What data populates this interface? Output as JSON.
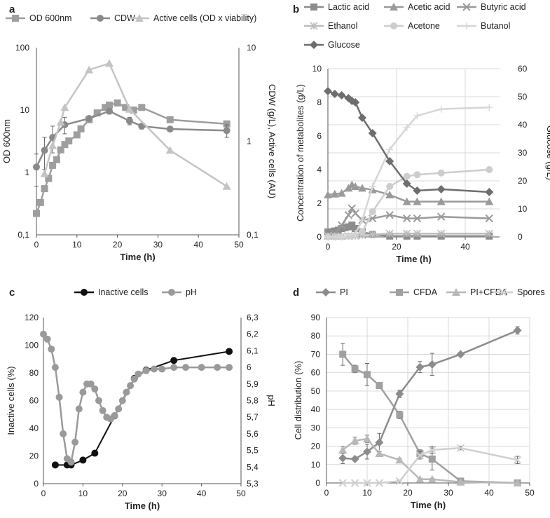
{
  "chart_data": [
    {
      "panel": "a",
      "type": "line",
      "yscale": "log",
      "x_ticks": [
        "0",
        "10",
        "20",
        "30",
        "40",
        "50"
      ],
      "xlabel": "Time (h)",
      "xlim": [
        0,
        50
      ],
      "ylabel": "OD 600nm",
      "ylim": [
        0.1,
        100
      ],
      "y_ticks": [
        "0,1",
        "1",
        "10",
        "100"
      ],
      "y2label": "CDW (g/L), Active cells (AU)",
      "y2lim": [
        0.1,
        10
      ],
      "y2_ticks": [
        "0,1",
        "1",
        "10"
      ],
      "series": [
        {
          "name": "OD 600nm",
          "axis": "left",
          "marker": "square",
          "color": "#9e9e9e",
          "x": [
            0,
            1,
            2,
            3,
            4,
            5,
            6,
            7,
            8,
            10,
            11,
            13,
            15,
            17,
            18,
            20,
            22,
            24,
            26,
            33,
            47
          ],
          "y": [
            0.22,
            0.33,
            0.55,
            0.8,
            1.3,
            1.6,
            2.3,
            2.8,
            3.2,
            4,
            5,
            7,
            9,
            11,
            12,
            13,
            11,
            10,
            11,
            7,
            6
          ]
        },
        {
          "name": "CDW",
          "axis": "right",
          "marker": "circle",
          "color": "#8a8a8a",
          "x": [
            0,
            2,
            4,
            7,
            13,
            18,
            23,
            26,
            33,
            47
          ],
          "y": [
            0.53,
            0.8,
            1.1,
            1.5,
            1.75,
            2.1,
            1.65,
            1.45,
            1.35,
            1.3
          ],
          "err": [
            0.2,
            0.3,
            0.35,
            0.3,
            0.1,
            0.15,
            0.15,
            0.1,
            0.05,
            0.2
          ]
        },
        {
          "name": "Active cells (OD x viability)",
          "axis": "right",
          "marker": "triangle",
          "color": "#c4c4c4",
          "x": [
            2,
            4,
            6,
            7,
            13,
            18,
            23,
            33,
            47
          ],
          "y": [
            0.45,
            0.9,
            1.6,
            2.3,
            5.8,
            6.8,
            2.2,
            0.8,
            0.33
          ]
        }
      ]
    },
    {
      "panel": "b",
      "type": "line",
      "xlabel": "Time (h)",
      "xlim": [
        0,
        50
      ],
      "x_ticks": [
        "0",
        "20",
        "40"
      ],
      "ylabel": "Concentration of metabolites (g/L)",
      "ylim": [
        0,
        10
      ],
      "y_ticks": [
        "0",
        "2",
        "4",
        "6",
        "8",
        "10"
      ],
      "y2label": "Glucose (g/L)",
      "y2lim": [
        0,
        60
      ],
      "y2_ticks": [
        "0",
        "10",
        "20",
        "30",
        "40",
        "50",
        "60"
      ],
      "series": [
        {
          "name": "Lactic acid",
          "axis": "left",
          "marker": "square",
          "color": "#8c8c8c",
          "x": [
            0,
            1,
            2,
            3,
            4,
            5,
            6,
            7,
            8,
            10,
            13,
            18,
            23,
            26,
            33,
            47
          ],
          "y": [
            0.3,
            0.3,
            0.35,
            0.4,
            0.5,
            0.55,
            0.6,
            0.7,
            0.5,
            0.3,
            0.15,
            0.05,
            0.05,
            0.05,
            0.05,
            0.05
          ]
        },
        {
          "name": "Acetic acid",
          "axis": "left",
          "marker": "triangle",
          "color": "#9a9a9a",
          "x": [
            0,
            2,
            4,
            6,
            7,
            8,
            10,
            13,
            18,
            23,
            26,
            33,
            47
          ],
          "y": [
            2.5,
            2.55,
            2.6,
            2.9,
            3.1,
            3.0,
            2.9,
            2.8,
            2.5,
            2.1,
            2.1,
            2.1,
            2.1
          ]
        },
        {
          "name": "Butyric acid",
          "axis": "left",
          "marker": "x",
          "color": "#9a9a9a",
          "x": [
            0,
            2,
            4,
            6,
            7,
            8,
            10,
            13,
            18,
            23,
            26,
            33,
            47
          ],
          "y": [
            0.1,
            0.2,
            0.7,
            1.3,
            1.7,
            1.4,
            1.0,
            1.1,
            1.3,
            1.1,
            1.1,
            1.2,
            1.1
          ]
        },
        {
          "name": "Ethanol",
          "axis": "left",
          "marker": "asterisk",
          "color": "#bdbdbd",
          "x": [
            0,
            2,
            4,
            6,
            8,
            10,
            13,
            18,
            23,
            26,
            33,
            47
          ],
          "y": [
            0.05,
            0.05,
            0.05,
            0.05,
            0.05,
            0.1,
            0.15,
            0.2,
            0.2,
            0.2,
            0.2,
            0.2
          ]
        },
        {
          "name": "Acetone",
          "axis": "left",
          "marker": "circle",
          "color": "#cdcdcd",
          "x": [
            0,
            2,
            4,
            6,
            8,
            10,
            13,
            18,
            23,
            26,
            33,
            47
          ],
          "y": [
            0,
            0,
            0,
            0.05,
            0.1,
            0.3,
            1.5,
            3.0,
            3.6,
            3.7,
            3.8,
            4.0
          ]
        },
        {
          "name": "Butanol",
          "axis": "left",
          "marker": "dash",
          "color": "#d6d6d6",
          "x": [
            0,
            4,
            8,
            10,
            13,
            18,
            23,
            26,
            33,
            47
          ],
          "y": [
            0,
            0,
            0.2,
            1.0,
            3.0,
            5.2,
            6.5,
            7.2,
            7.6,
            7.7
          ]
        },
        {
          "name": "Glucose",
          "axis": "right",
          "marker": "diamond",
          "color": "#6e6e6e",
          "x": [
            0,
            2,
            4,
            6,
            7,
            8,
            10,
            13,
            18,
            23,
            26,
            33,
            47
          ],
          "y": [
            52,
            51,
            50.5,
            49.5,
            48.5,
            48,
            42.5,
            37,
            27,
            19,
            16.5,
            17,
            16
          ]
        }
      ]
    },
    {
      "panel": "c",
      "type": "line",
      "xlabel": "Time (h)",
      "xlim": [
        0,
        50
      ],
      "x_ticks": [
        "0",
        "10",
        "20",
        "30",
        "40",
        "50"
      ],
      "ylabel": "Inactive cells (%)",
      "ylim": [
        0,
        120
      ],
      "y_ticks": [
        "0",
        "20",
        "40",
        "60",
        "80",
        "100",
        "120"
      ],
      "y2label": "pH",
      "y2lim": [
        5.3,
        6.3
      ],
      "y2_ticks": [
        "5,3",
        "5,4",
        "5,5",
        "5,6",
        "5,7",
        "5,8",
        "5,9",
        "6",
        "6,1",
        "6,2",
        "6,3"
      ],
      "series": [
        {
          "name": "Inactive cells",
          "axis": "left",
          "marker": "circle",
          "color": "#111111",
          "x": [
            3,
            6,
            7,
            10,
            13,
            18,
            23,
            26,
            33,
            47
          ],
          "y": [
            13.5,
            13.5,
            13.5,
            17,
            22,
            49,
            76,
            82,
            89,
            95.5
          ]
        },
        {
          "name": "pH",
          "axis": "right",
          "marker": "circle",
          "color": "#9a9a9a",
          "x": [
            0,
            1,
            2,
            3,
            4,
            5,
            6,
            7,
            8,
            9,
            10,
            11,
            12,
            13,
            14,
            15,
            16,
            17,
            18,
            19,
            20,
            21,
            22,
            23,
            24,
            26,
            28,
            30,
            33,
            36,
            40,
            44,
            47
          ],
          "y": [
            6.2,
            6.17,
            6.11,
            6.0,
            5.82,
            5.6,
            5.45,
            5.43,
            5.55,
            5.75,
            5.85,
            5.9,
            5.9,
            5.87,
            5.8,
            5.74,
            5.7,
            5.69,
            5.71,
            5.75,
            5.8,
            5.85,
            5.89,
            5.93,
            5.96,
            5.98,
            5.99,
            5.99,
            6.0,
            6.0,
            6.0,
            6.0,
            6.0
          ]
        }
      ]
    },
    {
      "panel": "d",
      "type": "line",
      "xlabel": "Time (h)",
      "xlim": [
        0,
        50
      ],
      "x_ticks": [
        "0",
        "10",
        "20",
        "30",
        "40",
        "50"
      ],
      "ylabel": "Cell distribution (%)",
      "ylim": [
        0,
        90
      ],
      "y_ticks": [
        "0",
        "10",
        "20",
        "30",
        "40",
        "50",
        "60",
        "70",
        "80",
        "90"
      ],
      "series": [
        {
          "name": "PI",
          "marker": "diamond",
          "color": "#8c8c8c",
          "x": [
            4,
            7,
            10,
            13,
            18,
            23,
            26,
            33,
            47
          ],
          "y": [
            13.5,
            13,
            17,
            22,
            48.5,
            63,
            64.5,
            70,
            83
          ],
          "err": [
            3,
            1,
            4,
            5,
            2,
            3,
            6,
            1,
            2
          ]
        },
        {
          "name": "CFDA",
          "marker": "square",
          "color": "#a0a0a0",
          "x": [
            4,
            7,
            10,
            13,
            18,
            23,
            26,
            33,
            47
          ],
          "y": [
            70,
            62,
            59,
            53,
            37,
            16,
            13,
            1,
            0
          ],
          "err": [
            6,
            2,
            6,
            1,
            2,
            2,
            6,
            1,
            0.5
          ]
        },
        {
          "name": "PI+CFDA",
          "marker": "triangle",
          "color": "#b8b8b8",
          "x": [
            4,
            7,
            10,
            13,
            18,
            23,
            26,
            33,
            47
          ],
          "y": [
            18,
            23,
            24,
            16,
            12.5,
            2,
            2,
            0.5,
            0
          ],
          "err": [
            2,
            2,
            2,
            1,
            1,
            0.5,
            0.5,
            0.2,
            0.2
          ]
        },
        {
          "name": "Spores",
          "marker": "x",
          "color": "#d0d0d0",
          "x": [
            4,
            7,
            10,
            13,
            18,
            23,
            26,
            33,
            47
          ],
          "y": [
            0,
            0,
            0,
            0,
            1,
            15,
            18,
            19,
            12.5
          ],
          "err": [
            0,
            0,
            0,
            0,
            0.5,
            2,
            2,
            1,
            2
          ]
        }
      ]
    }
  ],
  "panel_labels": [
    "a",
    "b",
    "c",
    "d"
  ]
}
